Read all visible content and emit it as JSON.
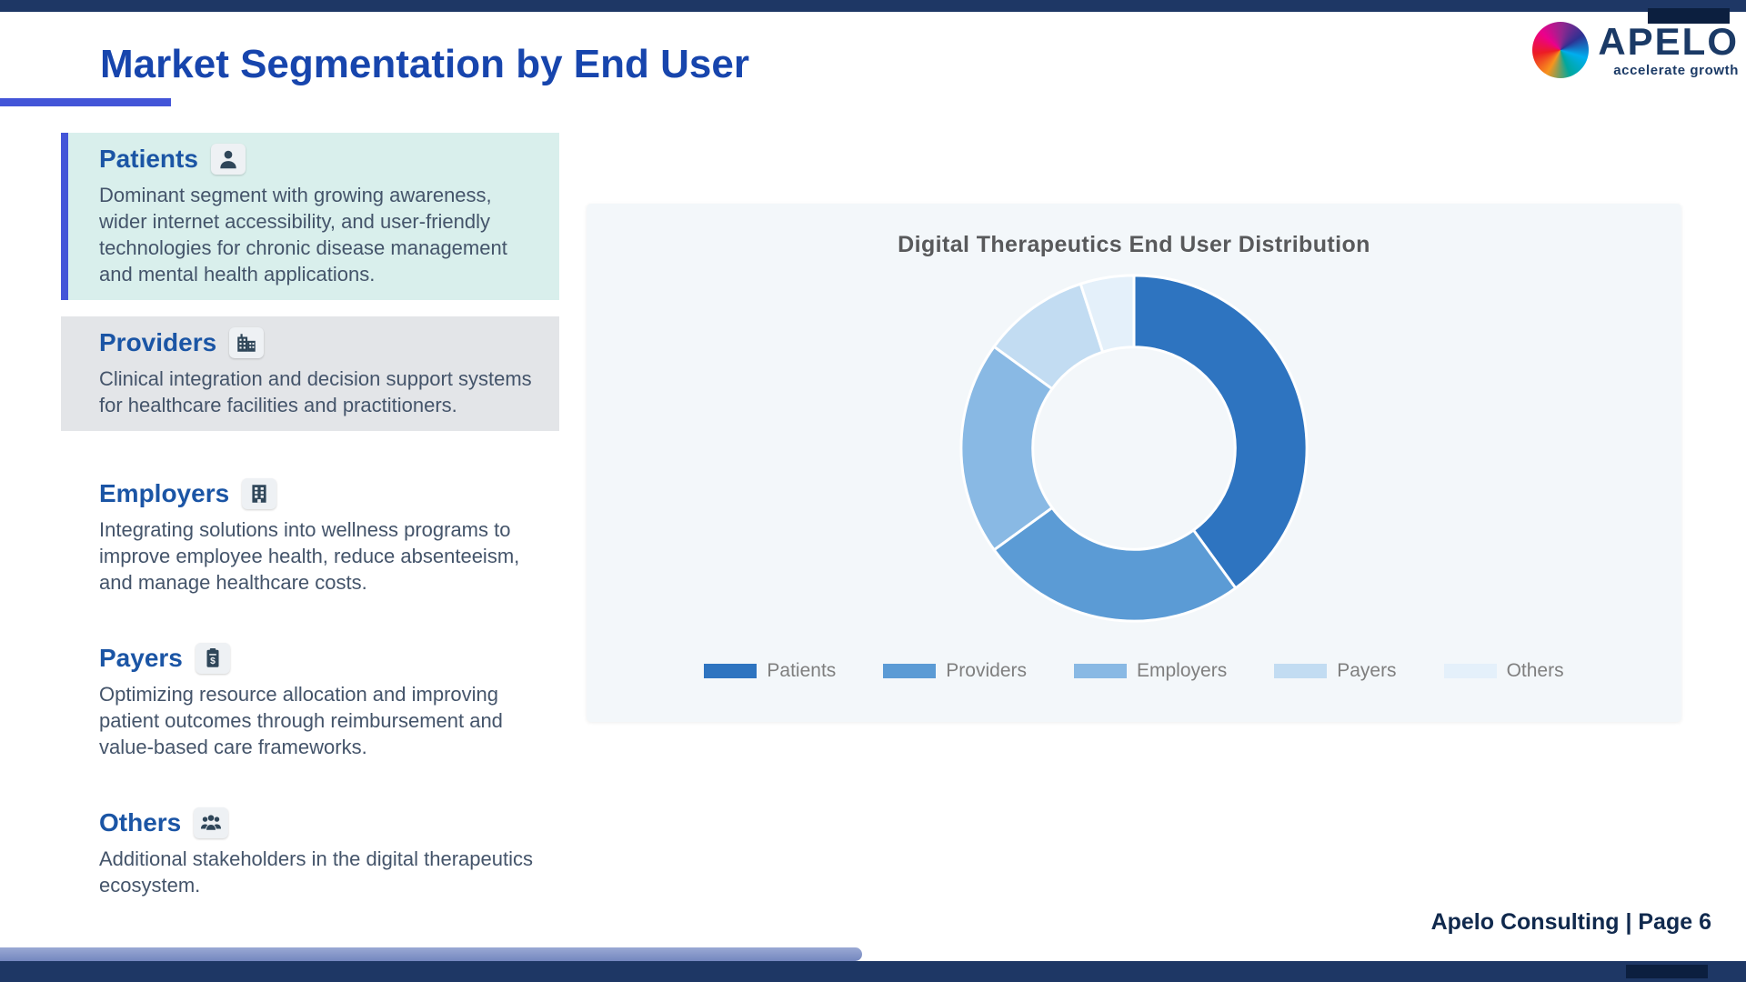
{
  "slide": {
    "title": "Market Segmentation by End User",
    "footer": "Apelo Consulting | Page 6"
  },
  "logo": {
    "wordmark": "APELO",
    "tagline": "accelerate growth",
    "mark": "pinwheel-icon"
  },
  "segments": [
    {
      "title": "Patients",
      "icon": "person-icon",
      "description": "Dominant segment with growing awareness, wider internet accessibility, and user-friendly technologies for chronic disease management and mental health applications."
    },
    {
      "title": "Providers",
      "icon": "hospital-icon",
      "description": "Clinical integration and decision support systems for healthcare facilities and practitioners."
    },
    {
      "title": "Employers",
      "icon": "office-building-icon",
      "description": "Integrating solutions into wellness programs to improve employee health, reduce absenteeism, and manage healthcare costs."
    },
    {
      "title": "Payers",
      "icon": "billing-clipboard-icon",
      "description": "Optimizing resource allocation and improving patient outcomes through reimbursement and value-based care frameworks."
    },
    {
      "title": "Others",
      "icon": "people-group-icon",
      "description": "Additional stakeholders in the digital therapeutics ecosystem."
    }
  ],
  "chart_data": {
    "type": "pie",
    "donut": true,
    "title": "Digital Therapeutics End User Distribution",
    "categories": [
      "Patients",
      "Providers",
      "Employers",
      "Payers",
      "Others"
    ],
    "values": [
      40,
      25,
      20,
      10,
      5
    ],
    "colors": [
      "#2e74c0",
      "#5b9bd5",
      "#89b9e4",
      "#c2dcf2",
      "#e4f0fa"
    ],
    "legend_position": "bottom",
    "start_angle_deg": -90,
    "direction": "clockwise"
  },
  "theme": {
    "brand_navy": "#1e3765",
    "title_blue": "#1745ad",
    "accent_indigo": "#4355d8",
    "patients_card_bg": "#d9efec",
    "providers_card_bg": "#e3e5e8",
    "chart_panel_bg": "#f3f7fa",
    "body_text": "#44546a"
  }
}
